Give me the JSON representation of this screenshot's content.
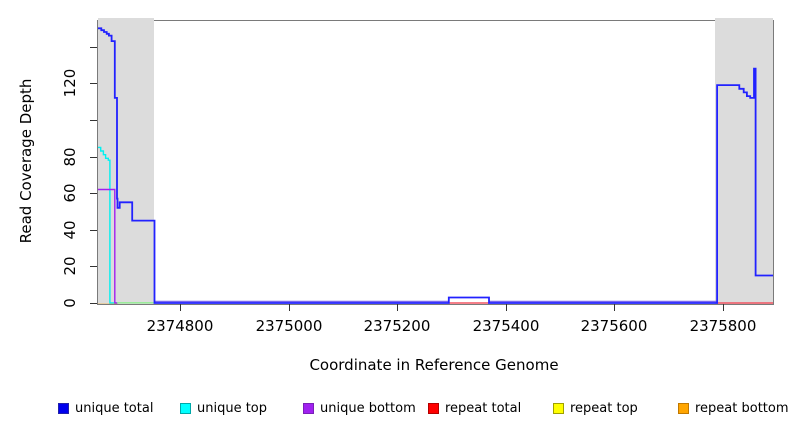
{
  "chart_data": {
    "type": "line",
    "title": "",
    "xlabel": "Coordinate in Reference Genome",
    "ylabel": "Read Coverage Depth",
    "xlim": [
      2374649,
      2375892
    ],
    "ylim": [
      0,
      154
    ],
    "grid": false,
    "x_ticks": [
      2374800,
      2375000,
      2375200,
      2375400,
      2375600,
      2375800
    ],
    "x_tick_labels": [
      "2374800",
      "2375000",
      "2375200",
      "2375400",
      "2375600",
      "2375800"
    ],
    "y_ticks": [
      0,
      20,
      40,
      60,
      80,
      100,
      120,
      140
    ],
    "y_tick_labels": [
      "0",
      "20",
      "40",
      "60",
      "80",
      "",
      "120",
      ""
    ],
    "shaded_regions": [
      {
        "name": "left-gray-band",
        "x0": 2374649,
        "x1": 2374752
      },
      {
        "name": "right-gray-band",
        "x0": 2375785,
        "x1": 2375892
      }
    ],
    "shaded_color": "#dcdcdc",
    "series": [
      {
        "name": "unique top",
        "color": "#00f0f0",
        "width": 1.4,
        "points": [
          [
            2374649,
            85
          ],
          [
            2374654,
            85
          ],
          [
            2374654,
            83
          ],
          [
            2374659,
            83
          ],
          [
            2374659,
            81
          ],
          [
            2374663,
            81
          ],
          [
            2374663,
            79
          ],
          [
            2374668,
            79
          ],
          [
            2374668,
            78
          ],
          [
            2374671,
            78
          ],
          [
            2374671,
            0
          ],
          [
            2374684,
            0
          ]
        ]
      },
      {
        "name": "unique bottom",
        "color": "#a020f0",
        "width": 1.4,
        "points": [
          [
            2374649,
            62
          ],
          [
            2374680,
            62
          ],
          [
            2374680,
            0
          ],
          [
            2374686,
            0
          ]
        ]
      },
      {
        "name": "repeat bottom",
        "color": "#ffa500",
        "width": 1.6,
        "points": [
          [
            2374647,
            -0.8
          ],
          [
            2374684,
            -0.8
          ]
        ]
      },
      {
        "name": "overlap repeat-top unique-top zero",
        "color": "#90ee90",
        "width": 1.4,
        "points": [
          [
            2374684,
            0.1
          ],
          [
            2374753,
            0.1
          ]
        ]
      },
      {
        "name": "unique total+bottom zero left",
        "color": "#7b68ee",
        "width": 1.4,
        "points": [
          [
            2374753,
            0.8
          ],
          [
            2375295,
            0.8
          ]
        ]
      },
      {
        "name": "unique total+bottom zero right",
        "color": "#7b68ee",
        "width": 1.4,
        "points": [
          [
            2375369,
            0.8
          ],
          [
            2375789,
            0.8
          ]
        ]
      },
      {
        "name": "repeat total mid",
        "color": "#f25562",
        "width": 1.4,
        "points": [
          [
            2375295,
            0
          ],
          [
            2375369,
            0
          ]
        ]
      },
      {
        "name": "repeat total right",
        "color": "#f25562",
        "width": 1.4,
        "points": [
          [
            2375789,
            0
          ],
          [
            2375892,
            0
          ]
        ]
      },
      {
        "name": "unique total",
        "color": "#2222ff",
        "width": 1.8,
        "points": [
          [
            2374649,
            150
          ],
          [
            2374655,
            150
          ],
          [
            2374655,
            149
          ],
          [
            2374660,
            149
          ],
          [
            2374660,
            148
          ],
          [
            2374665,
            148
          ],
          [
            2374665,
            147
          ],
          [
            2374669,
            147
          ],
          [
            2374669,
            146
          ],
          [
            2374674,
            146
          ],
          [
            2374674,
            143
          ],
          [
            2374680,
            143
          ],
          [
            2374680,
            112
          ],
          [
            2374684,
            112
          ],
          [
            2374684,
            57
          ],
          [
            2374685,
            57
          ],
          [
            2374685,
            52
          ],
          [
            2374689,
            52
          ],
          [
            2374689,
            55
          ],
          [
            2374712,
            55
          ],
          [
            2374712,
            45
          ],
          [
            2374753,
            45
          ],
          [
            2374753,
            0
          ],
          [
            2375295,
            0
          ],
          [
            2375295,
            3
          ],
          [
            2375369,
            3
          ],
          [
            2375369,
            0
          ],
          [
            2375789,
            0
          ],
          [
            2375789,
            119
          ],
          [
            2375830,
            119
          ],
          [
            2375830,
            117
          ],
          [
            2375838,
            117
          ],
          [
            2375838,
            115
          ],
          [
            2375844,
            115
          ],
          [
            2375844,
            113
          ],
          [
            2375850,
            113
          ],
          [
            2375850,
            112
          ],
          [
            2375857,
            112
          ],
          [
            2375857,
            128
          ],
          [
            2375860,
            128
          ],
          [
            2375860,
            15
          ],
          [
            2375892,
            15
          ]
        ]
      }
    ],
    "legend": {
      "position": "bottom",
      "items": [
        {
          "label": "unique total",
          "fill": "#0000ee",
          "border": "#2222aa"
        },
        {
          "label": "unique top",
          "fill": "#00ffff",
          "border": "#00a8a8"
        },
        {
          "label": "unique bottom",
          "fill": "#a020f0",
          "border": "#7a1fb8"
        },
        {
          "label": "repeat total",
          "fill": "#ff0000",
          "border": "#b30000"
        },
        {
          "label": "repeat top",
          "fill": "#ffff00",
          "border": "#a0a000"
        },
        {
          "label": "repeat bottom",
          "fill": "#ffa500",
          "border": "#c07800"
        }
      ]
    }
  }
}
